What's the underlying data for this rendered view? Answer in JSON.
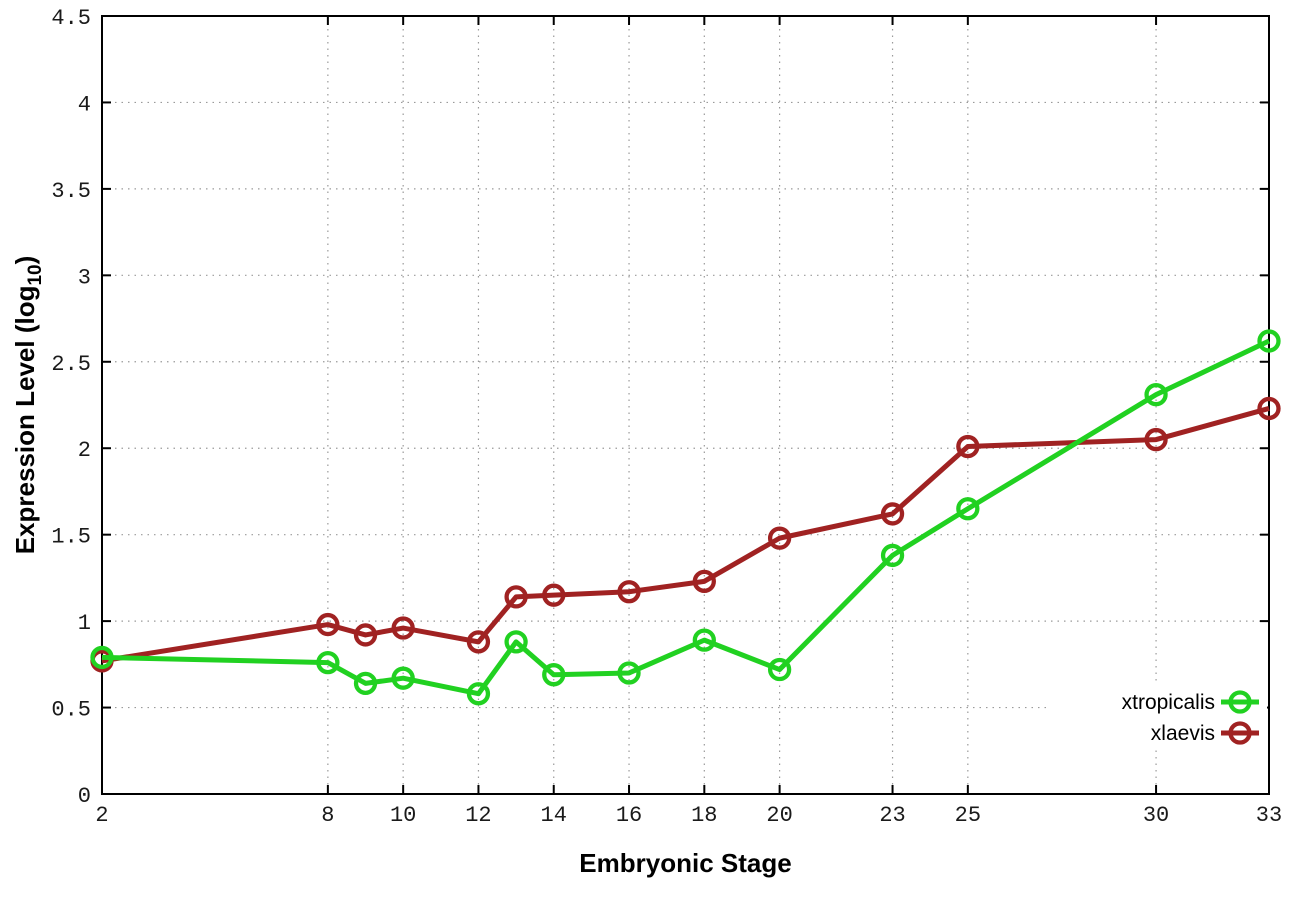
{
  "chart_data": {
    "type": "line",
    "title": "",
    "xlabel": "Embryonic Stage",
    "ylabel": "Expression Level (log10)",
    "ylabel_parts": {
      "main": "Expression Level (log",
      "sub": "10",
      "end": ")"
    },
    "xlim": [
      2,
      33
    ],
    "ylim": [
      0,
      4.5
    ],
    "x_ticks": [
      2,
      8,
      10,
      12,
      14,
      16,
      18,
      20,
      23,
      25,
      30,
      33
    ],
    "y_ticks": [
      0,
      0.5,
      1,
      1.5,
      2,
      2.5,
      3,
      3.5,
      4,
      4.5
    ],
    "grid": true,
    "grid_style": "dotted",
    "background_color": "#ffffff",
    "border_color": "#000000",
    "legend_position": "bottom-right-inside",
    "marker": "open-circle",
    "x": [
      2,
      8,
      9,
      10,
      12,
      13,
      14,
      16,
      18,
      20,
      23,
      25,
      30,
      33
    ],
    "series": [
      {
        "name": "xtropicalis",
        "color": "#21d121",
        "values": [
          0.79,
          0.76,
          0.64,
          0.67,
          0.58,
          0.88,
          0.69,
          0.7,
          0.89,
          0.72,
          1.38,
          1.65,
          2.31,
          2.62
        ]
      },
      {
        "name": "xlaevis",
        "color": "#a02222",
        "values": [
          0.77,
          0.98,
          0.92,
          0.96,
          0.88,
          1.14,
          1.15,
          1.17,
          1.23,
          1.48,
          1.62,
          2.01,
          2.05,
          2.23
        ]
      }
    ]
  }
}
